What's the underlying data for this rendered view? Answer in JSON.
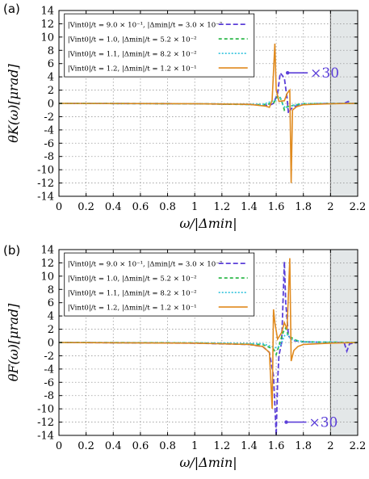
{
  "chart_data": [
    {
      "type": "line",
      "panel_label": "(a)",
      "xlabel": "ω/|Δmin|",
      "ylabel": "θK(ω)[μrad]",
      "xlim": [
        0,
        2.2
      ],
      "ylim": [
        -14,
        14
      ],
      "xticks": [
        "0",
        "0.2",
        "0.4",
        "0.6",
        "0.8",
        "1",
        "1.2",
        "1.4",
        "1.6",
        "1.8",
        "2",
        "2.2"
      ],
      "yticks": [
        "14",
        "12",
        "10",
        "8",
        "6",
        "4",
        "2",
        "0",
        "-2",
        "-4",
        "-6",
        "-8",
        "-10",
        "-12",
        "-14"
      ],
      "grid": true,
      "legend_position": "top-left",
      "shaded_region": [
        2.0,
        2.2
      ],
      "annotation": {
        "text": "×30",
        "x": 1.66,
        "y": 4.6
      },
      "series": [
        {
          "name": "|Vint0|/t = 9.0 × 10⁻¹, |Δmin|/t = 3.0 × 10⁻²",
          "color": "#5b3fd8",
          "dash": "6,3",
          "points": [
            [
              0,
              0
            ],
            [
              1.0,
              -0.05
            ],
            [
              1.4,
              -0.15
            ],
            [
              1.55,
              -0.3
            ],
            [
              1.58,
              0
            ],
            [
              1.61,
              1.5
            ],
            [
              1.63,
              4.6
            ],
            [
              1.66,
              3.8
            ],
            [
              1.68,
              0.8
            ],
            [
              1.69,
              -1.5
            ],
            [
              1.71,
              -0.8
            ],
            [
              1.75,
              -0.3
            ],
            [
              1.8,
              -0.1
            ],
            [
              2.0,
              0
            ],
            [
              2.1,
              0
            ],
            [
              2.13,
              0.3
            ],
            [
              2.15,
              0
            ],
            [
              2.2,
              0
            ]
          ]
        },
        {
          "name": "|Vint0|/t = 1.0, |Δmin|/t = 5.2 × 10⁻²",
          "color": "#2db84a",
          "dash": "4,3",
          "points": [
            [
              0,
              0
            ],
            [
              1.0,
              -0.05
            ],
            [
              1.5,
              -0.2
            ],
            [
              1.58,
              0
            ],
            [
              1.6,
              0.8
            ],
            [
              1.62,
              1.2
            ],
            [
              1.64,
              0.4
            ],
            [
              1.66,
              -1.0
            ],
            [
              1.68,
              -0.5
            ],
            [
              1.75,
              -0.2
            ],
            [
              1.8,
              -0.05
            ],
            [
              2.2,
              0
            ]
          ]
        },
        {
          "name": "|Vint0|/t = 1.1, |Δmin|/t = 8.2 × 10⁻²",
          "color": "#3ec6df",
          "dash": "2,2",
          "points": [
            [
              0,
              0
            ],
            [
              1.0,
              -0.05
            ],
            [
              1.5,
              -0.15
            ],
            [
              1.6,
              0.5
            ],
            [
              1.63,
              0.9
            ],
            [
              1.65,
              -0.3
            ],
            [
              1.67,
              -0.7
            ],
            [
              1.72,
              -0.3
            ],
            [
              1.8,
              -0.05
            ],
            [
              2.2,
              0
            ]
          ]
        },
        {
          "name": "|Vint0|/t = 1.2, |Δmin|/t = 1.2 × 10⁻¹",
          "color": "#e08a1e",
          "dash": "",
          "points": [
            [
              0,
              0
            ],
            [
              1.0,
              -0.05
            ],
            [
              1.4,
              -0.15
            ],
            [
              1.52,
              -0.4
            ],
            [
              1.55,
              -0.6
            ],
            [
              1.57,
              0.5
            ],
            [
              1.59,
              9.0
            ],
            [
              1.6,
              2.0
            ],
            [
              1.62,
              0.3
            ],
            [
              1.66,
              0.4
            ],
            [
              1.68,
              1.5
            ],
            [
              1.7,
              2.0
            ],
            [
              1.71,
              -12.0
            ],
            [
              1.72,
              -1.0
            ],
            [
              1.75,
              -0.5
            ],
            [
              1.8,
              -0.2
            ],
            [
              2.0,
              -0.05
            ],
            [
              2.2,
              0
            ]
          ]
        }
      ]
    },
    {
      "type": "line",
      "panel_label": "(b)",
      "xlabel": "ω/|Δmin|",
      "ylabel": "θF(ω)[μrad]",
      "xlim": [
        0,
        2.2
      ],
      "ylim": [
        -14,
        14
      ],
      "xticks": [
        "0",
        "0.2",
        "0.4",
        "0.6",
        "0.8",
        "1",
        "1.2",
        "1.4",
        "1.6",
        "1.8",
        "2",
        "2.2"
      ],
      "yticks": [
        "14",
        "12",
        "10",
        "8",
        "6",
        "4",
        "2",
        "0",
        "-2",
        "-4",
        "-6",
        "-8",
        "-10",
        "-12",
        "-14"
      ],
      "grid": true,
      "legend_position": "top-left",
      "shaded_region": [
        2.0,
        2.2
      ],
      "annotation": {
        "text": "×30",
        "x": 1.65,
        "y": -12.0
      },
      "series": [
        {
          "name": "|Vint0|/t = 9.0 × 10⁻¹, |Δmin|/t = 3.0 × 10⁻²",
          "color": "#5b3fd8",
          "dash": "6,3",
          "points": [
            [
              0,
              0
            ],
            [
              1.0,
              -0.1
            ],
            [
              1.4,
              -0.3
            ],
            [
              1.5,
              -0.6
            ],
            [
              1.55,
              -1.5
            ],
            [
              1.58,
              -5.0
            ],
            [
              1.6,
              -14.0
            ],
            [
              1.61,
              -6.0
            ],
            [
              1.62,
              -2.0
            ],
            [
              1.64,
              0
            ],
            [
              1.66,
              12.2
            ],
            [
              1.67,
              6.0
            ],
            [
              1.69,
              1.0
            ],
            [
              1.72,
              0.3
            ],
            [
              1.8,
              0.1
            ],
            [
              2.0,
              0
            ],
            [
              2.1,
              0
            ],
            [
              2.12,
              -1.3
            ],
            [
              2.14,
              -0.2
            ],
            [
              2.2,
              0
            ]
          ]
        },
        {
          "name": "|Vint0|/t = 1.0, |Δmin|/t = 5.2 × 10⁻²",
          "color": "#2db84a",
          "dash": "4,3",
          "points": [
            [
              0,
              0
            ],
            [
              1.0,
              -0.05
            ],
            [
              1.5,
              -0.3
            ],
            [
              1.58,
              -1.0
            ],
            [
              1.6,
              -1.8
            ],
            [
              1.62,
              -0.5
            ],
            [
              1.65,
              1.5
            ],
            [
              1.67,
              2.2
            ],
            [
              1.69,
              1.0
            ],
            [
              1.75,
              0.3
            ],
            [
              1.8,
              0.1
            ],
            [
              2.2,
              0
            ]
          ]
        },
        {
          "name": "|Vint0|/t = 1.1, |Δmin|/t = 8.2 × 10⁻²",
          "color": "#3ec6df",
          "dash": "2,2",
          "points": [
            [
              0,
              0
            ],
            [
              1.0,
              -0.05
            ],
            [
              1.5,
              -0.2
            ],
            [
              1.6,
              -0.8
            ],
            [
              1.63,
              -0.5
            ],
            [
              1.66,
              1.0
            ],
            [
              1.68,
              1.2
            ],
            [
              1.72,
              0.4
            ],
            [
              1.8,
              0.1
            ],
            [
              2.2,
              0
            ]
          ]
        },
        {
          "name": "|Vint0|/t = 1.2, |Δmin|/t = 1.2 × 10⁻¹",
          "color": "#e08a1e",
          "dash": "",
          "points": [
            [
              0,
              0
            ],
            [
              1.0,
              -0.1
            ],
            [
              1.4,
              -0.3
            ],
            [
              1.5,
              -0.6
            ],
            [
              1.55,
              -1.5
            ],
            [
              1.57,
              -10.0
            ],
            [
              1.58,
              5.0
            ],
            [
              1.59,
              3.0
            ],
            [
              1.61,
              0.5
            ],
            [
              1.64,
              1.5
            ],
            [
              1.66,
              3.0
            ],
            [
              1.68,
              2.0
            ],
            [
              1.7,
              12.7
            ],
            [
              1.71,
              -2.8
            ],
            [
              1.73,
              -1.2
            ],
            [
              1.76,
              -0.6
            ],
            [
              1.8,
              -0.3
            ],
            [
              2.0,
              -0.1
            ],
            [
              2.2,
              0
            ]
          ]
        }
      ]
    }
  ]
}
